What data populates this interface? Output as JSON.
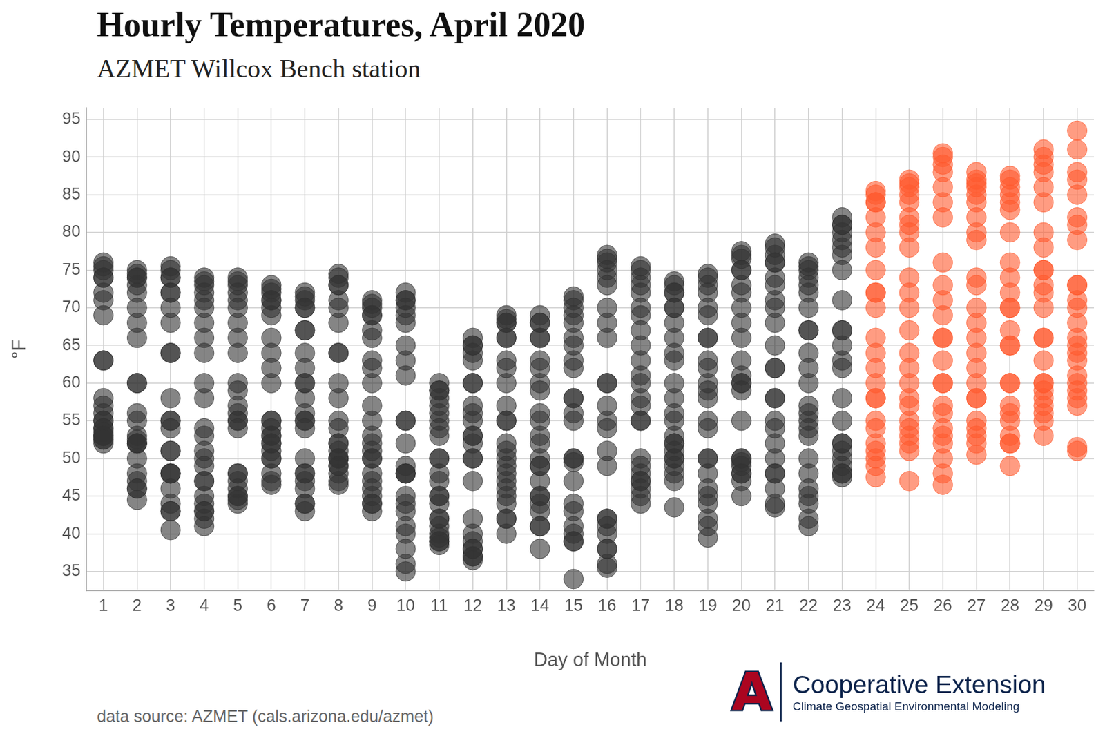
{
  "chart_data": {
    "type": "scatter",
    "title": "Hourly Temperatures, April 2020",
    "subtitle": "AZMET Willcox Bench station",
    "x_label": "Day of Month",
    "y_label": "°F",
    "caption": "data source: AZMET (cals.arizona.edu/azmet)",
    "logo": {
      "mark": "A",
      "name": "Cooperative Extension",
      "unit": "Climate Geospatial Environmental Modeling"
    },
    "xlim": [
      0.5,
      30.5
    ],
    "xticks": [
      1,
      2,
      3,
      4,
      5,
      6,
      7,
      8,
      9,
      10,
      11,
      12,
      13,
      14,
      15,
      16,
      17,
      18,
      19,
      20,
      21,
      22,
      23,
      24,
      25,
      26,
      27,
      28,
      29,
      30
    ],
    "ylim": [
      32.5,
      96.5
    ],
    "yticks": [
      35,
      40,
      45,
      50,
      55,
      60,
      65,
      70,
      75,
      80,
      85,
      90,
      95
    ],
    "grid": true,
    "marker": "circle",
    "series": [
      {
        "color": "#333333",
        "x": [
          1,
          2,
          3,
          4,
          5,
          6,
          7,
          8,
          9,
          10,
          11,
          12,
          13,
          14,
          15,
          16,
          17,
          18,
          19,
          20,
          21,
          22,
          23
        ],
        "values": [
          [
            56,
            55,
            54,
            53,
            52.5,
            52,
            53,
            58,
            63,
            69,
            72,
            74,
            75,
            76,
            75.5,
            74,
            71,
            63,
            57,
            55,
            54,
            53.5,
            53,
            52.5
          ],
          [
            52,
            50,
            48,
            47,
            46,
            44.5,
            46,
            52,
            60,
            66,
            70,
            73,
            74,
            75,
            74.5,
            74,
            72,
            68,
            60,
            56,
            55,
            53,
            52.5,
            52
          ],
          [
            51,
            48,
            46,
            44,
            43,
            40.5,
            43,
            48,
            55,
            64,
            68,
            72,
            74,
            75.5,
            75,
            74,
            72,
            70,
            64,
            58,
            55,
            54,
            51,
            48
          ],
          [
            47,
            45,
            44,
            43,
            42,
            41,
            43,
            47,
            54,
            60,
            64,
            68,
            71,
            73,
            74,
            73.5,
            72,
            70,
            66,
            58,
            53,
            51,
            50,
            49
          ],
          [
            48,
            47,
            46,
            45,
            44.5,
            44,
            45,
            48,
            55,
            60,
            64,
            68,
            71,
            73,
            74,
            73.5,
            72,
            70,
            66,
            59,
            57,
            56,
            55,
            54
          ],
          [
            53,
            52,
            51,
            50,
            48,
            46.5,
            47,
            50,
            55,
            62,
            66,
            69,
            71,
            72,
            73,
            72.5,
            71,
            70,
            64,
            60,
            55,
            54,
            53,
            52
          ],
          [
            50,
            48,
            47,
            46,
            44,
            43,
            44,
            48,
            55,
            60,
            64,
            67,
            70,
            71.5,
            72,
            71,
            70,
            67,
            62,
            60,
            58,
            56,
            55,
            54
          ],
          [
            52,
            51,
            50,
            49,
            47,
            46.5,
            48,
            50,
            55,
            60,
            64,
            68,
            71,
            73,
            74.5,
            74,
            73,
            70,
            64,
            58,
            54,
            52,
            50,
            49
          ],
          [
            48,
            47,
            46,
            45,
            44,
            43,
            44,
            50,
            55,
            60,
            63,
            66,
            69,
            70.5,
            71,
            70,
            69,
            67,
            62,
            57,
            53,
            52,
            51,
            50
          ],
          [
            48,
            45,
            43,
            41,
            38,
            35,
            36,
            40,
            48,
            55,
            61,
            65,
            68,
            70,
            71,
            72,
            71,
            69,
            63,
            55,
            52,
            49,
            48,
            44
          ],
          [
            42,
            41,
            40,
            39.5,
            39,
            38.5,
            39,
            42,
            45,
            48,
            50,
            54,
            56,
            58,
            59,
            60,
            59,
            57,
            55,
            53,
            50,
            47,
            45,
            44
          ],
          [
            40,
            39,
            38,
            37,
            36.5,
            37,
            38,
            42,
            47,
            50,
            53,
            56,
            60,
            63,
            65,
            66,
            65,
            64,
            60,
            57,
            55,
            53,
            52,
            50
          ],
          [
            49,
            47,
            45,
            44,
            42,
            40,
            42,
            46,
            51,
            55,
            60,
            63,
            66,
            68,
            69,
            68.5,
            68,
            66,
            62,
            57,
            55,
            52,
            50,
            48
          ],
          [
            47,
            45,
            44,
            43,
            41,
            38,
            41,
            45,
            49,
            53,
            56,
            60,
            63,
            66,
            68,
            69,
            68,
            66,
            62,
            59,
            55,
            52,
            50,
            49
          ],
          [
            47,
            44,
            41,
            40,
            39,
            34,
            39,
            43,
            50,
            55,
            58,
            63,
            66,
            69,
            71,
            71.5,
            70,
            68,
            65,
            62,
            58,
            56,
            50,
            49.5
          ],
          [
            42,
            41,
            40,
            38,
            36,
            35.5,
            38,
            42,
            49,
            55,
            60,
            66,
            70,
            74,
            76,
            77,
            76.5,
            75,
            73,
            68,
            60,
            57,
            54,
            51
          ],
          [
            49,
            48,
            47,
            46,
            45,
            44,
            47,
            50,
            55,
            58,
            61,
            65,
            69,
            72,
            74,
            75.5,
            75,
            73,
            70,
            67,
            63,
            60,
            57,
            55
          ],
          [
            53,
            51,
            50,
            49,
            48,
            43.5,
            47,
            50,
            52,
            56,
            60,
            64,
            68,
            70,
            72,
            73.5,
            73,
            72,
            70,
            66,
            63,
            58,
            55,
            52
          ],
          [
            50,
            48,
            46,
            44,
            42,
            39.5,
            41,
            45,
            50,
            54,
            58,
            62,
            66,
            70,
            73,
            74.5,
            74,
            72,
            69,
            66,
            63,
            60,
            59,
            55
          ],
          [
            50,
            49.5,
            49,
            48,
            47,
            45,
            48,
            50,
            55,
            60,
            63,
            66,
            70,
            73,
            75,
            77,
            77.5,
            76.5,
            75,
            72,
            68,
            61,
            60,
            59
          ],
          [
            55,
            52,
            50,
            48,
            46,
            43.5,
            44,
            48,
            54,
            58,
            62,
            65,
            68,
            71,
            74,
            76,
            77,
            78,
            78.5,
            76,
            73,
            70,
            62,
            58
          ],
          [
            56,
            53,
            48,
            46,
            44,
            41,
            42,
            45,
            50,
            54,
            57,
            60,
            64,
            67,
            70,
            72,
            74,
            75,
            76,
            75.5,
            73,
            67,
            62,
            55
          ],
          [
            52,
            51,
            50,
            49,
            48,
            47.5,
            48,
            52,
            55,
            58,
            62,
            65,
            67,
            71,
            75,
            77,
            79,
            80,
            81,
            82,
            81,
            78,
            67,
            63
          ]
        ]
      },
      {
        "color": "#ff5a2e",
        "x": [
          24,
          25,
          26,
          27,
          28,
          29,
          30
        ],
        "values": [
          [
            62,
            58,
            55,
            52,
            50,
            47.5,
            49,
            51,
            54,
            58,
            60,
            64,
            66,
            70,
            72,
            75,
            78,
            80,
            82,
            84,
            85,
            85.5,
            84,
            72
          ],
          [
            62,
            58,
            55,
            53,
            52,
            47,
            51,
            54,
            57,
            60,
            64,
            67,
            70,
            72,
            74,
            78,
            81,
            82,
            84,
            85,
            86,
            87,
            86.5,
            80
          ],
          [
            66,
            60,
            56,
            53,
            50,
            46.5,
            48,
            52,
            54,
            57,
            60,
            63,
            66,
            69,
            71,
            73,
            76,
            82,
            84,
            86,
            88,
            89,
            90,
            90.5
          ],
          [
            73,
            68,
            62,
            58,
            54,
            50.5,
            52,
            53,
            55,
            58,
            60,
            64,
            66,
            70,
            74,
            79,
            80,
            82,
            84,
            85,
            86,
            87,
            88,
            86.5
          ],
          [
            70,
            65,
            60,
            55,
            52,
            49,
            52,
            53,
            56,
            57,
            60,
            65,
            67,
            70,
            72,
            74,
            76,
            80,
            83,
            84,
            85,
            86,
            87,
            87.5
          ],
          [
            75,
            72,
            66,
            60,
            57,
            53,
            55,
            56,
            58,
            59,
            60,
            63,
            66,
            70,
            73,
            75,
            78,
            80,
            84,
            86,
            88,
            89,
            90,
            91
          ],
          [
            81,
            73,
            70,
            65,
            60,
            51,
            51.5,
            57,
            58,
            59,
            61,
            63,
            64,
            66,
            68,
            71,
            73,
            79,
            82,
            85,
            87,
            88,
            91,
            93.5
          ]
        ]
      }
    ]
  }
}
